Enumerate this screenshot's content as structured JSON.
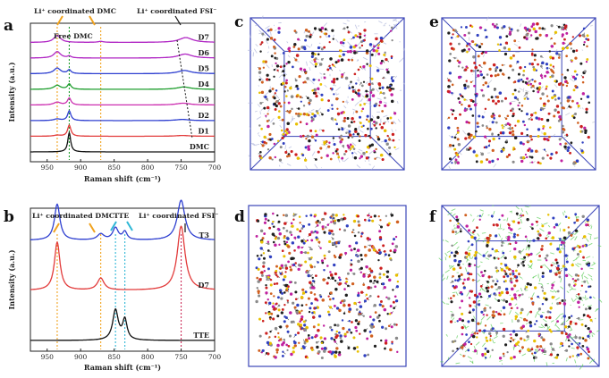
{
  "figure": {
    "panel_letters": [
      "a",
      "b",
      "c",
      "d",
      "e",
      "f"
    ]
  },
  "colors": {
    "black": "#111111",
    "red": "#e23b3b",
    "blue": "#2e3fd0",
    "green": "#1f9e2e",
    "purple": "#b026c4",
    "magenta": "#cc2fb0",
    "orange_marker": "#f0a21e",
    "cyan_marker": "#2fb7d6",
    "box_edge": "#3b45b8"
  },
  "chart_data": [
    {
      "panel": "a",
      "type": "line",
      "xlabel": "Raman shift (cm⁻¹)",
      "ylabel": "Intensity (a.u.)",
      "xlim": [
        975,
        700
      ],
      "x_ticks": [
        "950",
        "900",
        "850",
        "800",
        "750",
        "700"
      ],
      "x_tick_values": [
        950,
        900,
        850,
        800,
        750,
        700
      ],
      "annotations": {
        "li_dmc": "Li⁺ coordinated DMC",
        "free_dmc": "Free DMC",
        "li_fsi": "Li⁺ coordinated FSI⁻"
      },
      "series": [
        {
          "name": "DMC",
          "color": "#111111",
          "offset": 0,
          "peaks": [
            {
              "x": 917,
              "h": 0.95,
              "w": 2.6
            }
          ]
        },
        {
          "name": "D1",
          "color": "#e23b3b",
          "offset": 1,
          "peaks": [
            {
              "x": 917,
              "h": 0.55,
              "w": 3.0
            },
            {
              "x": 935,
              "h": 0.05,
              "w": 6
            },
            {
              "x": 748,
              "h": 0.04,
              "w": 12
            }
          ]
        },
        {
          "name": "D2",
          "color": "#2e3fd0",
          "offset": 2,
          "peaks": [
            {
              "x": 917,
              "h": 0.48,
              "w": 3.0
            },
            {
              "x": 935,
              "h": 0.08,
              "w": 6
            },
            {
              "x": 748,
              "h": 0.06,
              "w": 12
            }
          ]
        },
        {
          "name": "D3",
          "color": "#cc2fb0",
          "offset": 3,
          "peaks": [
            {
              "x": 917,
              "h": 0.34,
              "w": 3.2
            },
            {
              "x": 935,
              "h": 0.14,
              "w": 6
            },
            {
              "x": 747,
              "h": 0.09,
              "w": 12
            }
          ]
        },
        {
          "name": "D4",
          "color": "#1f9e2e",
          "offset": 4,
          "peaks": [
            {
              "x": 917,
              "h": 0.26,
              "w": 3.2
            },
            {
              "x": 935,
              "h": 0.2,
              "w": 6
            },
            {
              "x": 746,
              "h": 0.12,
              "w": 12
            }
          ]
        },
        {
          "name": "D5",
          "color": "#2e3fd0",
          "offset": 5,
          "peaks": [
            {
              "x": 917,
              "h": 0.18,
              "w": 3.2
            },
            {
              "x": 935,
              "h": 0.28,
              "w": 6
            },
            {
              "x": 745,
              "h": 0.16,
              "w": 12
            }
          ]
        },
        {
          "name": "D6",
          "color": "#b026c4",
          "offset": 6,
          "peaks": [
            {
              "x": 917,
              "h": 0.09,
              "w": 3.2
            },
            {
              "x": 935,
              "h": 0.32,
              "w": 6
            },
            {
              "x": 744,
              "h": 0.2,
              "w": 12
            }
          ]
        },
        {
          "name": "D7",
          "color": "#b026c4",
          "offset": 7,
          "peaks": [
            {
              "x": 935,
              "h": 0.35,
              "w": 6
            },
            {
              "x": 870,
              "h": 0.05,
              "w": 5
            },
            {
              "x": 743,
              "h": 0.24,
              "w": 12
            }
          ]
        }
      ]
    },
    {
      "panel": "b",
      "type": "line",
      "xlabel": "Raman shift (cm⁻¹)",
      "ylabel": "Intensity (a.u.)",
      "xlim": [
        975,
        700
      ],
      "x_ticks": [
        "950",
        "900",
        "850",
        "800",
        "750",
        "700"
      ],
      "x_tick_values": [
        950,
        900,
        850,
        800,
        750,
        700
      ],
      "annotations": {
        "li_dmc": "Li⁺ coordinated DMC",
        "tte": "TTE",
        "li_fsi": "Li⁺ coordinated FSI⁻"
      },
      "series": [
        {
          "name": "TTE",
          "color": "#111111",
          "offset": 0,
          "peaks": [
            {
              "x": 848,
              "h": 0.75,
              "w": 5
            },
            {
              "x": 834,
              "h": 0.5,
              "w": 4
            }
          ]
        },
        {
          "name": "D7",
          "color": "#e23b3b",
          "offset": 1,
          "peaks": [
            {
              "x": 935,
              "h": 1.2,
              "w": 5
            },
            {
              "x": 870,
              "h": 0.3,
              "w": 6
            },
            {
              "x": 750,
              "h": 1.6,
              "w": 7
            }
          ]
        },
        {
          "name": "T3",
          "color": "#2e3fd0",
          "offset": 2,
          "peaks": [
            {
              "x": 935,
              "h": 0.9,
              "w": 5
            },
            {
              "x": 870,
              "h": 0.15,
              "w": 6
            },
            {
              "x": 848,
              "h": 0.3,
              "w": 5
            },
            {
              "x": 834,
              "h": 0.2,
              "w": 4
            },
            {
              "x": 750,
              "h": 1.0,
              "w": 7
            }
          ]
        }
      ]
    }
  ]
}
